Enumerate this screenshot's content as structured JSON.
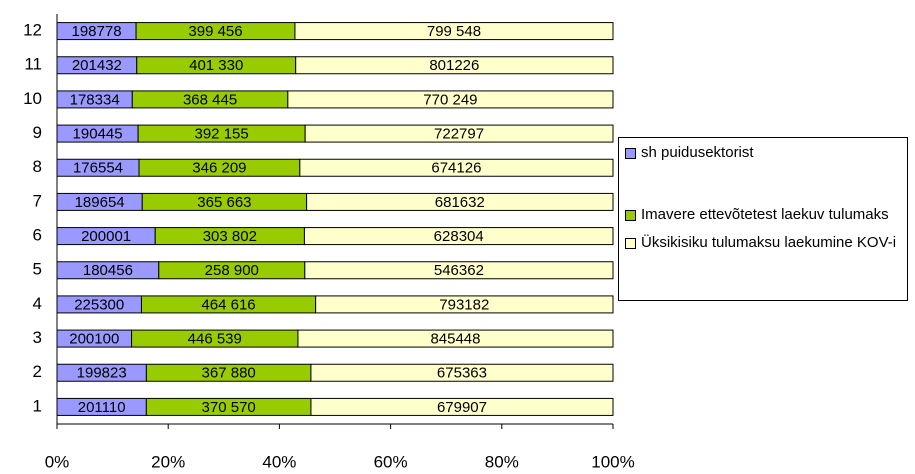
{
  "chart_data": {
    "type": "stacked-bar-100",
    "categories": [
      "1",
      "2",
      "3",
      "4",
      "5",
      "6",
      "7",
      "8",
      "9",
      "10",
      "11",
      "12"
    ],
    "series": [
      {
        "name": "sh puidusektorist",
        "color": "#9999ff",
        "values": [
          201110,
          199823,
          200100,
          225300,
          180456,
          200001,
          189654,
          176554,
          190445,
          178334,
          201432,
          198778
        ]
      },
      {
        "name": "Imavere ettevõtetest laekuv tulumaks",
        "color": "#99cc00",
        "values": [
          370570,
          367880,
          446539,
          464616,
          258900,
          303802,
          365663,
          346209,
          392155,
          368445,
          401330,
          399456
        ],
        "value_labels": [
          "370 570",
          "367 880",
          "446 539",
          "464 616",
          "258 900",
          "303 802",
          "365 663",
          "346 209",
          "392 155",
          "368 445",
          "401 330",
          "399 456"
        ]
      },
      {
        "name": "Üksikisiku tulumaksu laekumine KOV-i",
        "color": "#ffffcc",
        "values": [
          679907,
          675363,
          845448,
          793182,
          546362,
          628304,
          681632,
          674126,
          722797,
          770249,
          801226,
          799548
        ],
        "value_labels": [
          "679907",
          "675363",
          "845448",
          "793182",
          "546362",
          "628304",
          "681632",
          "674126",
          "722797",
          "770 249",
          "801226",
          "799 548"
        ]
      }
    ],
    "xlim": [
      0,
      100
    ],
    "xticks": [
      {
        "value": 0,
        "label": "0%"
      },
      {
        "value": 20,
        "label": "20%"
      },
      {
        "value": 40,
        "label": "40%"
      },
      {
        "value": 60,
        "label": "60%"
      },
      {
        "value": 80,
        "label": "80%"
      },
      {
        "value": 100,
        "label": "100%"
      }
    ],
    "legend": "right"
  }
}
